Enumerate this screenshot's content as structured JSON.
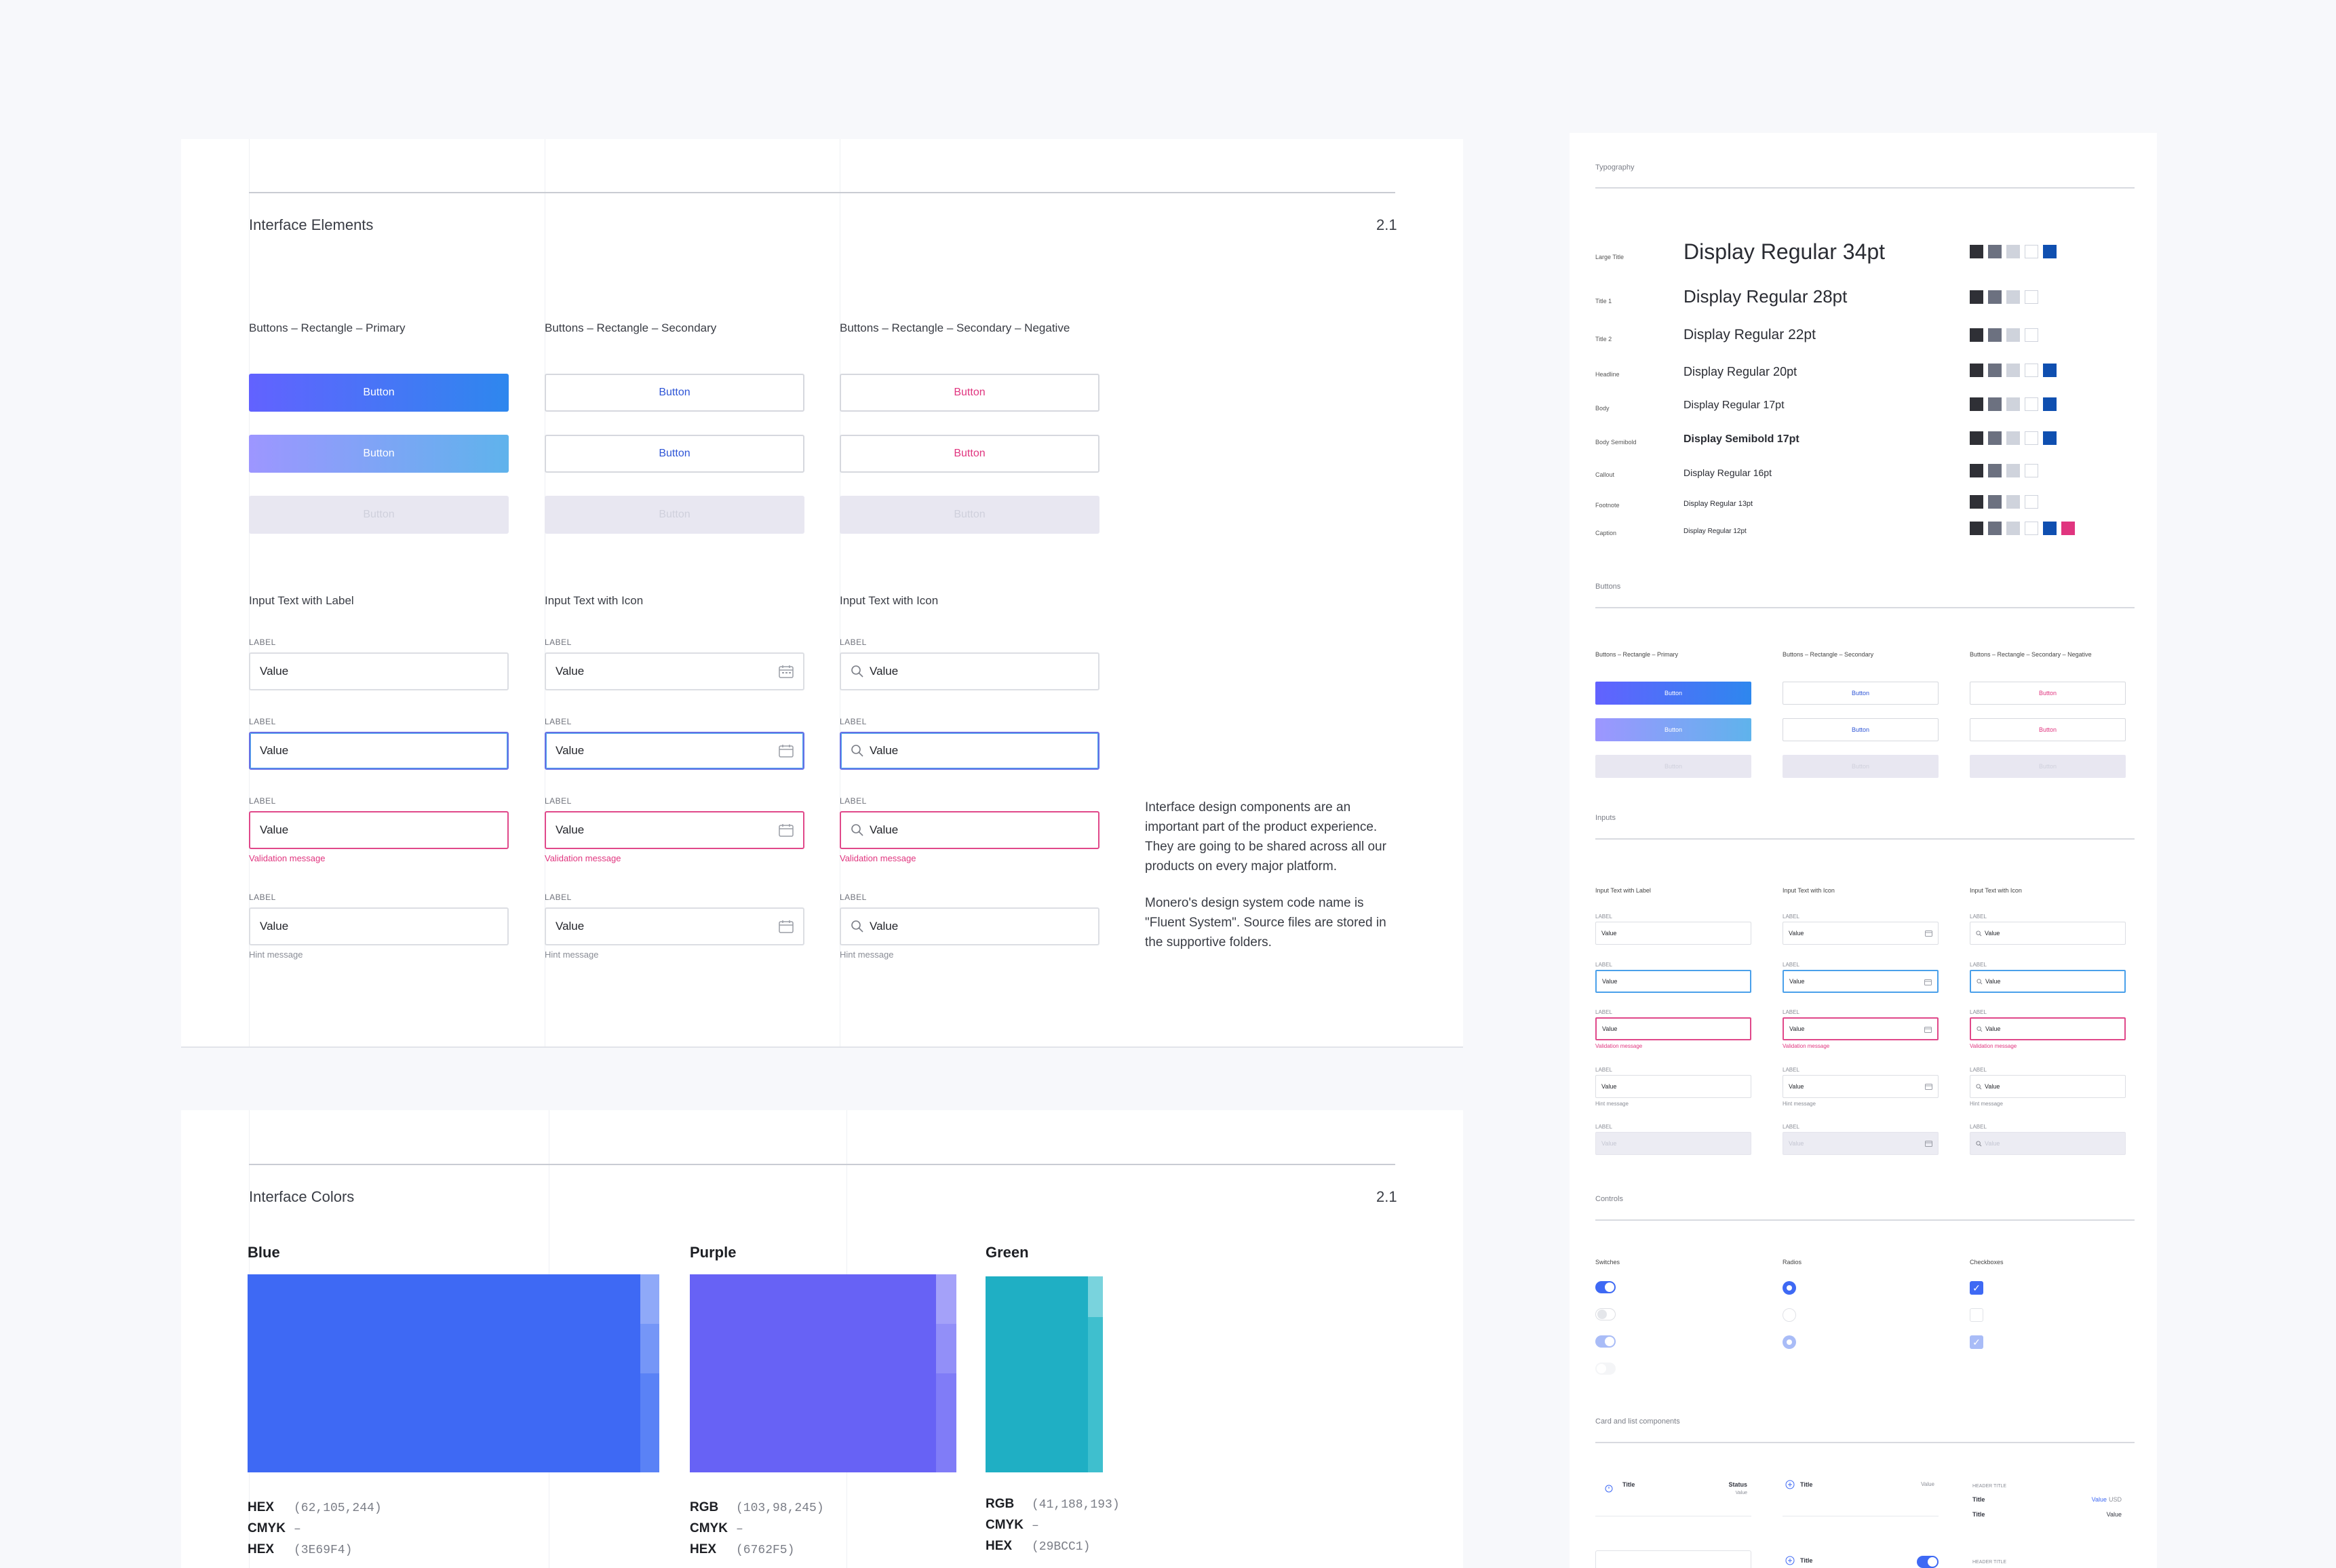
{
  "interface_elements": {
    "title": "Interface Elements",
    "number": "2.1",
    "buttons": {
      "col1_title": "Buttons – Rectangle – Primary",
      "col2_title": "Buttons – Rectangle – Secondary",
      "col3_title": "Buttons – Rectangle – Secondary – Negative",
      "label": "Button"
    },
    "inputs": {
      "col1_title": "Input Text with Label",
      "col2_title": "Input Text with Icon",
      "col3_title": "Input Text with Icon",
      "field_label": "LABEL",
      "value": "Value",
      "validation": "Validation message",
      "hint": "Hint message"
    },
    "description": {
      "p1": "Interface design components are an important part of the product experience. They are going to be shared across all our products on every major platform.",
      "p2": "Monero's design system code name is \"Fluent System\". Source files are stored in the supportive folders."
    }
  },
  "interface_colors": {
    "title": "Interface Colors",
    "number": "2.1",
    "swatches": [
      {
        "name": "Blue",
        "color": "#3E69F4",
        "rows": [
          {
            "k": "HEX",
            "v": "(62,105,244)"
          },
          {
            "k": "CMYK",
            "v": "–"
          },
          {
            "k": "HEX",
            "v": "(3E69F4)"
          }
        ]
      },
      {
        "name": "Purple",
        "color": "#6762F5",
        "rows": [
          {
            "k": "RGB",
            "v": "(103,98,245)"
          },
          {
            "k": "CMYK",
            "v": "–"
          },
          {
            "k": "HEX",
            "v": "(6762F5)"
          }
        ]
      },
      {
        "name": "Green",
        "color": "#29BCC1",
        "rows": [
          {
            "k": "RGB",
            "v": "(41,188,193)"
          },
          {
            "k": "CMYK",
            "v": "–"
          },
          {
            "k": "HEX",
            "v": "(29BCC1)"
          }
        ]
      }
    ]
  },
  "overview": {
    "typography_title": "Typography",
    "typography": [
      {
        "style": "Large Title",
        "sample": "Display Regular 34pt"
      },
      {
        "style": "Title 1",
        "sample": "Display Regular 28pt"
      },
      {
        "style": "Title 2",
        "sample": "Display Regular 22pt"
      },
      {
        "style": "Headline",
        "sample": "Display Regular 20pt"
      },
      {
        "style": "Body",
        "sample": "Display Regular 17pt"
      },
      {
        "style": "Body Semibold",
        "sample": "Display Semibold 17pt"
      },
      {
        "style": "Callout",
        "sample": "Display Regular 16pt"
      },
      {
        "style": "Footnote",
        "sample": "Display Regular 13pt"
      },
      {
        "style": "Caption",
        "sample": "Display Regular 12pt"
      }
    ],
    "buttons_title": "Buttons",
    "inputs_title": "Inputs",
    "controls_title": "Controls",
    "controls_cols": [
      "Switches",
      "Radios",
      "Checkboxes"
    ],
    "cards_title": "Card and list components",
    "card": {
      "title": "Title",
      "status": "Status",
      "value": "Value",
      "header_title": "HEADER TITLE",
      "usd": "USD"
    }
  },
  "colors": {
    "accent": "#3E69F4",
    "purple": "#6762F5",
    "green": "#29BCC1",
    "negative": "#E0357F"
  }
}
